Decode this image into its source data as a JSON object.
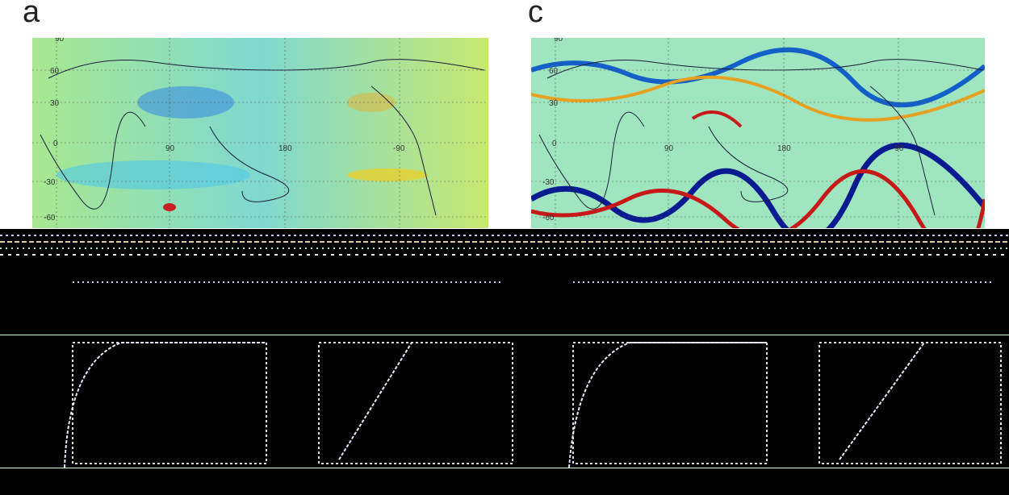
{
  "panels": [
    {
      "letter": "a",
      "ticks": {
        "lat": [
          "90",
          "60",
          "30",
          "0",
          "-30",
          "-60"
        ],
        "lon": [
          "90",
          "180",
          "-90"
        ]
      }
    },
    {
      "letter": "c",
      "ticks": {
        "lat": [
          "90",
          "60",
          "30",
          "0",
          "-30",
          "-60"
        ],
        "lon": [
          "90",
          "180",
          "-90"
        ]
      }
    }
  ],
  "colors": {
    "field_mid_a": "#8fe3a8",
    "field_mid_c": "#9fe6c0",
    "positive": "#e8a020",
    "negative": "#1460c8",
    "strong_positive": "#c81818",
    "strong_negative": "#0a1a90",
    "coast": "#1a1a3a"
  }
}
